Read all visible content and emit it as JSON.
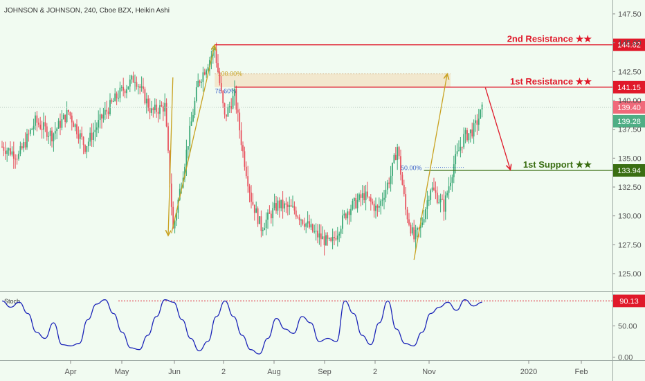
{
  "header": {
    "title": "JOHNSON & JOHNSON, 240, Cboe BZX, Heikin Ashi"
  },
  "colors": {
    "background": "#f1fbf1",
    "up": "#3aa876",
    "down": "#e8525e",
    "resistance": "#e0192a",
    "support": "#3a6e12",
    "projection": "#c8a11f",
    "oscillator": "#1a23b8",
    "price_badge_red": "#f0697a",
    "price_badge_green": "#4fae85"
  },
  "chart_data": {
    "type": "candlestick",
    "title": "JOHNSON & JOHNSON, 240, Cboe BZX, Heikin Ashi",
    "x_ticks": [
      "Apr",
      "May",
      "Jun",
      "2",
      "Aug",
      "Sep",
      "2",
      "Nov",
      "2020",
      "Feb"
    ],
    "y_ticks": [
      125.0,
      127.5,
      130.0,
      132.5,
      135.0,
      137.5,
      140.0,
      142.5,
      145.0,
      147.5
    ],
    "y_tick_labels": [
      "125.00",
      "127.50",
      "130.00",
      "132.50",
      "135.00",
      "137.50",
      "140.00",
      "142.50",
      "145.00",
      "147.50"
    ],
    "ylim": [
      123.5,
      148.7
    ],
    "price_anchors": [
      {
        "t": 0,
        "p": 136.0
      },
      {
        "t": 10,
        "p": 135.2
      },
      {
        "t": 20,
        "p": 138.2
      },
      {
        "t": 30,
        "p": 137.0
      },
      {
        "t": 40,
        "p": 139.0
      },
      {
        "t": 50,
        "p": 136.0
      },
      {
        "t": 60,
        "p": 138.5
      },
      {
        "t": 70,
        "p": 140.5
      },
      {
        "t": 80,
        "p": 142.0
      },
      {
        "t": 90,
        "p": 139.0
      },
      {
        "t": 98,
        "p": 139.5
      },
      {
        "t": 103,
        "p": 128.8
      },
      {
        "t": 108,
        "p": 133.0
      },
      {
        "t": 118,
        "p": 141.5
      },
      {
        "t": 128,
        "p": 144.5
      },
      {
        "t": 134,
        "p": 138.5
      },
      {
        "t": 140,
        "p": 140.5
      },
      {
        "t": 145,
        "p": 135.5
      },
      {
        "t": 150,
        "p": 131.5
      },
      {
        "t": 156,
        "p": 129.0
      },
      {
        "t": 166,
        "p": 131.0
      },
      {
        "t": 176,
        "p": 130.5
      },
      {
        "t": 188,
        "p": 128.5
      },
      {
        "t": 198,
        "p": 127.5
      },
      {
        "t": 208,
        "p": 130.5
      },
      {
        "t": 218,
        "p": 131.8
      },
      {
        "t": 226,
        "p": 130.5
      },
      {
        "t": 234,
        "p": 133.5
      },
      {
        "t": 238,
        "p": 136.0
      },
      {
        "t": 243,
        "p": 130.5
      },
      {
        "t": 248,
        "p": 128.0
      },
      {
        "t": 252,
        "p": 129.0
      },
      {
        "t": 258,
        "p": 132.5
      },
      {
        "t": 266,
        "p": 130.8
      },
      {
        "t": 272,
        "p": 134.5
      },
      {
        "t": 278,
        "p": 136.8
      },
      {
        "t": 284,
        "p": 137.5
      },
      {
        "t": 290,
        "p": 139.5
      }
    ],
    "candle_count": 290,
    "last_price_label": "139.40",
    "current_price_label": "139.28",
    "levels": [
      {
        "name": "2nd Resistance ★★",
        "value": 144.82,
        "label": "144.82",
        "color": "#e0192a"
      },
      {
        "name": "1st Resistance ★★",
        "value": 141.15,
        "label": "141.15",
        "color": "#e0192a"
      },
      {
        "name": "1st Support ★★",
        "value": 133.94,
        "label": "133.94",
        "color": "#3a6e12"
      }
    ],
    "fib_zone": {
      "from": 141.15,
      "to": 142.3
    },
    "fib_labels": [
      "100.00%",
      "78.60%",
      "50.00%"
    ],
    "fib_values": [
      142.3,
      141.0,
      134.2
    ],
    "projection_lines": [
      {
        "from": [
          102,
          128.5
        ],
        "to": [
          128,
          144.8
        ]
      },
      {
        "from": [
          248,
          126.2
        ],
        "to": [
          268,
          142.3
        ]
      }
    ],
    "forecast_arrow": {
      "from": [
        291,
        141.1
      ],
      "to": [
        306,
        134.0
      ]
    },
    "oscillator": {
      "name": "Stoch",
      "ylim": [
        -5,
        105
      ],
      "y_ticks": [
        0,
        50,
        100
      ],
      "y_tick_labels": [
        "0.00",
        "50.00",
        ""
      ],
      "overbought_value": 90.13,
      "overbought_label": "90.13",
      "values": [
        90,
        80,
        88,
        70,
        40,
        30,
        55,
        20,
        18,
        22,
        60,
        85,
        92,
        70,
        40,
        15,
        12,
        35,
        65,
        92,
        88,
        60,
        30,
        10,
        25,
        65,
        90,
        65,
        35,
        12,
        5,
        30,
        62,
        45,
        38,
        65,
        55,
        25,
        30,
        25,
        90,
        70,
        35,
        20,
        55,
        90,
        45,
        22,
        18,
        40,
        70,
        80,
        88,
        75,
        92,
        82,
        88
      ]
    }
  }
}
